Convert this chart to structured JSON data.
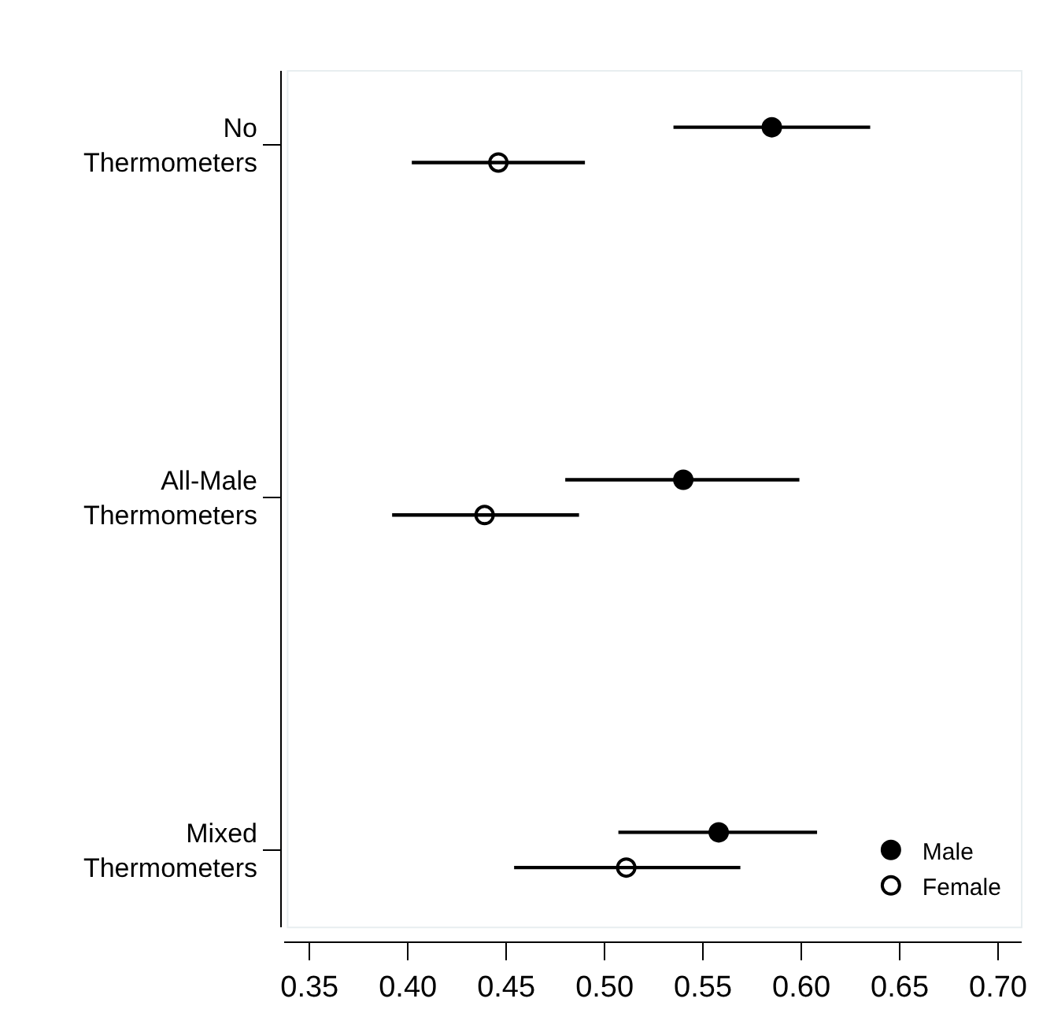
{
  "chart_data": {
    "type": "scatter",
    "orientation": "horizontal",
    "categories": [
      "No Thermometers",
      "All-Male Thermometers",
      "Mixed Thermometers"
    ],
    "series": [
      {
        "name": "Male",
        "color": "#000000",
        "marker": "circle",
        "values": [
          0.585,
          0.54,
          0.558
        ],
        "errors": [
          [
            0.535,
            0.635
          ],
          [
            0.48,
            0.599
          ],
          [
            0.507,
            0.608
          ]
        ]
      },
      {
        "name": "Female",
        "color": "#000000",
        "marker": "circle-open",
        "values": [
          0.446,
          0.439,
          0.511
        ],
        "errors": [
          [
            0.402,
            0.49
          ],
          [
            0.392,
            0.487
          ],
          [
            0.454,
            0.569
          ]
        ]
      }
    ],
    "xlim": [
      0.337,
      0.712
    ],
    "xticks": [
      0.35,
      {
        "value": 0.4,
        "label": "0.40"
      },
      0.45,
      {
        "value": 0.5,
        "label": "0.50"
      },
      0.55,
      {
        "value": 0.6,
        "label": "0.60"
      },
      0.65,
      {
        "value": 0.7,
        "label": "0.70"
      }
    ],
    "legend": "bottom right",
    "grid": false
  }
}
